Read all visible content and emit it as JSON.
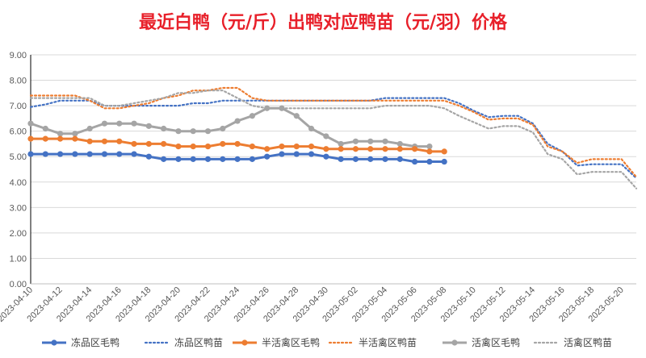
{
  "chart_data": {
    "type": "line",
    "title": "最近白鸭（元/斤）出鸭对应鸭苗（元/羽）价格",
    "title_color": "#e8202a",
    "xlabel": "",
    "ylabel": "",
    "ylim": [
      0,
      9
    ],
    "y_ticks": [
      "0.00",
      "1.00",
      "2.00",
      "3.00",
      "4.00",
      "5.00",
      "6.00",
      "7.00",
      "8.00",
      "9.00"
    ],
    "grid": true,
    "legend_position": "bottom",
    "x_tick_labels": [
      "2023-04-10",
      "2023-04-12",
      "2023-04-14",
      "2023-04-16",
      "2023-04-18",
      "2023-04-20",
      "2023-04-22",
      "2023-04-24",
      "2023-04-26",
      "2023-04-28",
      "2023-04-30",
      "2023-05-02",
      "2023-05-04",
      "2023-05-06",
      "2023-05-08",
      "2023-05-10",
      "2023-05-12",
      "2023-05-14",
      "2023-05-16",
      "2023-05-18",
      "2023-05-20"
    ],
    "series": [
      {
        "name": "冻品区毛鸭",
        "color": "#4472c4",
        "style": "solid-marker",
        "values": [
          5.1,
          5.1,
          5.1,
          5.1,
          5.1,
          5.1,
          5.1,
          5.1,
          5.0,
          4.9,
          4.9,
          4.9,
          4.9,
          4.9,
          4.9,
          4.9,
          5.0,
          5.1,
          5.1,
          5.1,
          5.0,
          4.9,
          4.9,
          4.9,
          4.9,
          4.9,
          4.8,
          4.8,
          4.8
        ]
      },
      {
        "name": "冻品区鸭苗",
        "color": "#4472c4",
        "style": "dotted",
        "values": [
          6.95,
          7.05,
          7.2,
          7.2,
          7.2,
          7.0,
          7.0,
          7.0,
          7.0,
          7.0,
          7.0,
          7.1,
          7.1,
          7.2,
          7.2,
          7.2,
          7.2,
          7.2,
          7.2,
          7.2,
          7.2,
          7.2,
          7.2,
          7.2,
          7.3,
          7.3,
          7.3,
          7.3,
          7.3,
          7.1,
          6.8,
          6.55,
          6.6,
          6.6,
          6.3,
          5.5,
          5.2,
          4.65,
          4.7,
          4.7,
          4.7,
          4.15
        ]
      },
      {
        "name": "半活禽区毛鸭",
        "color": "#ed7d31",
        "style": "solid-marker",
        "values": [
          5.7,
          5.7,
          5.7,
          5.7,
          5.6,
          5.6,
          5.6,
          5.5,
          5.5,
          5.5,
          5.4,
          5.4,
          5.4,
          5.5,
          5.5,
          5.4,
          5.3,
          5.4,
          5.4,
          5.4,
          5.3,
          5.3,
          5.3,
          5.3,
          5.3,
          5.3,
          5.3,
          5.2,
          5.2
        ]
      },
      {
        "name": "半活禽区鸭苗",
        "color": "#ed7d31",
        "style": "dotted",
        "values": [
          7.4,
          7.4,
          7.4,
          7.4,
          7.2,
          6.9,
          6.9,
          7.0,
          7.1,
          7.3,
          7.4,
          7.6,
          7.6,
          7.7,
          7.7,
          7.3,
          7.2,
          7.2,
          7.2,
          7.2,
          7.2,
          7.2,
          7.2,
          7.2,
          7.2,
          7.2,
          7.2,
          7.2,
          7.2,
          7.0,
          6.75,
          6.45,
          6.5,
          6.5,
          6.25,
          5.4,
          5.2,
          4.75,
          4.9,
          4.9,
          4.9,
          4.2
        ]
      },
      {
        "name": "活禽区毛鸭",
        "color": "#a5a5a5",
        "style": "solid-marker",
        "values": [
          6.3,
          6.1,
          5.9,
          5.9,
          6.1,
          6.3,
          6.3,
          6.3,
          6.2,
          6.1,
          6.0,
          6.0,
          6.0,
          6.1,
          6.4,
          6.6,
          6.9,
          6.9,
          6.6,
          6.1,
          5.8,
          5.5,
          5.6,
          5.6,
          5.6,
          5.5,
          5.4,
          5.4
        ]
      },
      {
        "name": "活禽区鸭苗",
        "color": "#a5a5a5",
        "style": "dotted",
        "values": [
          7.3,
          7.3,
          7.3,
          7.3,
          7.3,
          7.0,
          7.0,
          7.1,
          7.2,
          7.3,
          7.5,
          7.5,
          7.6,
          7.6,
          7.3,
          7.0,
          6.9,
          6.9,
          6.9,
          6.9,
          6.9,
          6.9,
          6.9,
          6.9,
          7.0,
          7.0,
          7.0,
          7.0,
          6.9,
          6.6,
          6.35,
          6.1,
          6.2,
          6.2,
          5.95,
          5.1,
          4.9,
          4.3,
          4.4,
          4.4,
          4.4,
          3.75
        ]
      }
    ]
  }
}
